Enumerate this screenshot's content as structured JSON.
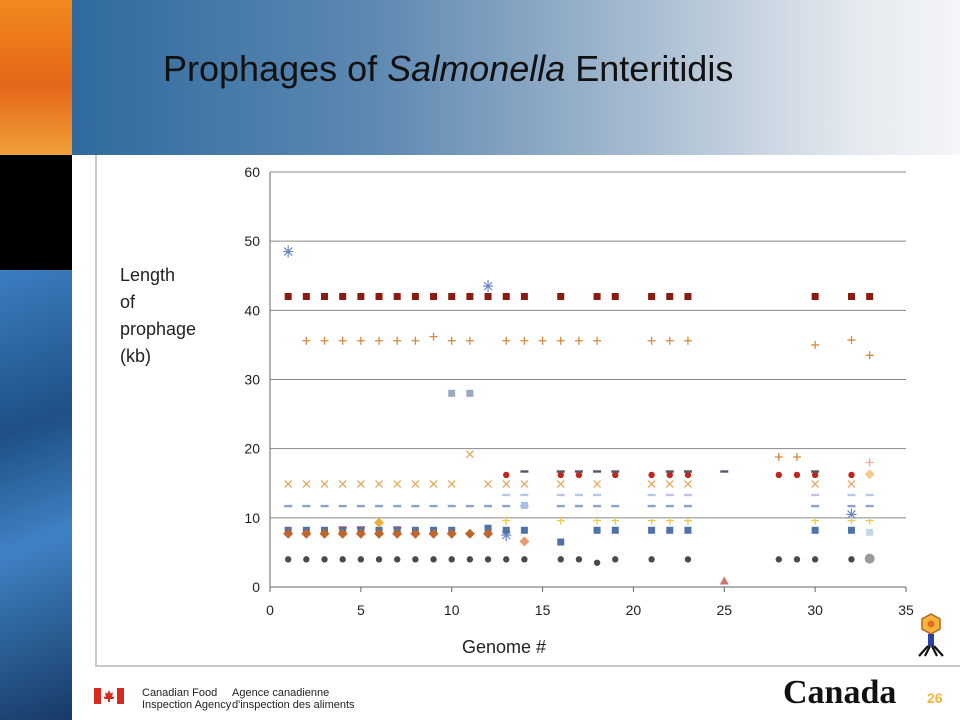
{
  "slide": {
    "title_pre": "Prophages of ",
    "title_italic": "Salmonella",
    "title_post": " Enteritidis",
    "page_number": "26"
  },
  "footer": {
    "agency_en_line1": "Canadian Food",
    "agency_en_line2": "Inspection Agency",
    "agency_fr_line1": "Agence canadienne",
    "agency_fr_line2": "d'inspection des aliments",
    "wordmark": "Canada"
  },
  "colors": {
    "canada_red": "#d52b1e",
    "page_number": "#f2b43a",
    "gridline": "#888888"
  },
  "icons": {
    "phage": "bacteriophage-icon",
    "flag": "canada-flag-icon"
  },
  "chart_data": {
    "type": "scatter",
    "title": "",
    "xlabel": "Genome #",
    "ylabel_lines": [
      "Length",
      "of",
      "prophage",
      "(kb)"
    ],
    "xlim": [
      0,
      35
    ],
    "ylim": [
      0,
      60
    ],
    "xticks": [
      0,
      5,
      10,
      15,
      20,
      25,
      30,
      35
    ],
    "yticks": [
      0,
      10,
      20,
      30,
      40,
      50,
      60
    ],
    "grid": "horizontal",
    "legend": "none",
    "series": [
      {
        "marker": "square",
        "color": "#8b1a10",
        "x": [
          1,
          2,
          3,
          4,
          5,
          6,
          7,
          8,
          9,
          10,
          11,
          12,
          13,
          14,
          16,
          18,
          19,
          21,
          22,
          23,
          30,
          32,
          33
        ],
        "y": [
          42,
          42,
          42,
          42,
          42,
          42,
          42,
          42,
          42,
          42,
          42,
          42,
          42,
          42,
          42,
          42,
          42,
          42,
          42,
          42,
          42,
          42,
          42
        ]
      },
      {
        "marker": "plus",
        "color": "#d68a3c",
        "x": [
          2,
          3,
          4,
          5,
          6,
          7,
          8,
          9,
          10,
          11,
          13,
          14,
          15,
          16,
          17,
          18,
          21,
          22,
          23,
          28,
          29,
          30,
          32,
          33
        ],
        "y": [
          35.6,
          35.6,
          35.6,
          35.6,
          35.6,
          35.6,
          35.6,
          36.2,
          35.6,
          35.6,
          35.6,
          35.6,
          35.6,
          35.6,
          35.6,
          35.6,
          35.6,
          35.6,
          35.6,
          18.8,
          18.8,
          35.0,
          35.7,
          33.5
        ]
      },
      {
        "marker": "star",
        "color": "#6a86c4",
        "x": [
          1,
          12,
          13,
          32
        ],
        "y": [
          48.5,
          43.5,
          7.5,
          10.5
        ]
      },
      {
        "marker": "square",
        "color": "#9aa9bf",
        "x": [
          10,
          11
        ],
        "y": [
          28,
          28
        ]
      },
      {
        "marker": "cross",
        "color": "#e2a85a",
        "x": [
          1,
          2,
          3,
          4,
          5,
          6,
          7,
          8,
          9,
          10,
          11,
          12,
          13,
          14,
          16,
          18,
          21,
          22,
          23,
          30,
          32
        ],
        "y": [
          14.9,
          14.9,
          14.9,
          14.9,
          14.9,
          14.9,
          14.9,
          14.9,
          14.9,
          14.9,
          19.2,
          14.9,
          14.9,
          14.9,
          14.9,
          14.9,
          14.9,
          14.9,
          14.9,
          14.9,
          14.9
        ]
      },
      {
        "marker": "circle",
        "color": "#c0271c",
        "x": [
          13,
          16,
          17,
          19,
          21,
          22,
          23,
          28,
          29,
          30,
          32
        ],
        "y": [
          16.2,
          16.2,
          16.2,
          16.2,
          16.2,
          16.2,
          16.2,
          16.2,
          16.2,
          16.2,
          16.2
        ]
      },
      {
        "marker": "dash",
        "color": "#4c5a6e",
        "x": [
          14,
          16,
          17,
          18,
          19,
          22,
          23,
          25,
          30
        ],
        "y": [
          16.7,
          16.7,
          16.7,
          16.7,
          16.7,
          16.7,
          16.7,
          16.7,
          16.7
        ]
      },
      {
        "marker": "dash",
        "color": "#8aa2cc",
        "x": [
          1,
          2,
          3,
          4,
          5,
          6,
          7,
          8,
          9,
          10,
          11,
          12,
          13,
          14,
          16,
          17,
          18,
          19,
          21,
          22,
          23,
          30,
          32,
          33
        ],
        "y": [
          11.7,
          11.7,
          11.7,
          11.7,
          11.7,
          11.7,
          11.7,
          11.7,
          11.7,
          11.7,
          11.7,
          11.7,
          11.7,
          11.7,
          11.7,
          11.7,
          11.7,
          11.7,
          11.7,
          11.7,
          11.7,
          11.7,
          11.7,
          11.7
        ]
      },
      {
        "marker": "dash",
        "color": "#b7c6e4",
        "x": [
          13,
          14,
          16,
          17,
          18,
          21,
          22,
          23,
          30,
          32,
          33
        ],
        "y": [
          13.3,
          13.3,
          13.3,
          13.3,
          13.3,
          13.3,
          13.3,
          13.3,
          13.3,
          13.3,
          13.3
        ]
      },
      {
        "marker": "square",
        "color": "#a7bfe3",
        "x": [
          14
        ],
        "y": [
          11.8
        ]
      },
      {
        "marker": "plus",
        "color": "#f0c94a",
        "x": [
          13,
          16,
          18,
          19,
          21,
          22,
          23,
          30,
          32,
          33
        ],
        "y": [
          9.6,
          9.6,
          9.6,
          9.6,
          9.6,
          9.6,
          9.6,
          9.6,
          9.6,
          9.6
        ]
      },
      {
        "marker": "dash",
        "color": "#c83a2a",
        "x": [
          4,
          5,
          7
        ],
        "y": [
          8.6,
          8.6,
          8.6
        ]
      },
      {
        "marker": "square",
        "color": "#4f73a8",
        "x": [
          1,
          2,
          3,
          4,
          5,
          6,
          7,
          8,
          9,
          10,
          12,
          13,
          14,
          16,
          18,
          19,
          21,
          22,
          23,
          30,
          32
        ],
        "y": [
          8.2,
          8.2,
          8.2,
          8.2,
          8.2,
          8.2,
          8.2,
          8.2,
          8.2,
          8.2,
          8.5,
          8.2,
          8.2,
          6.5,
          8.2,
          8.2,
          8.2,
          8.2,
          8.2,
          8.2,
          8.2
        ]
      },
      {
        "marker": "diamond",
        "color": "#c0662a",
        "x": [
          1,
          2,
          3,
          4,
          5,
          6,
          7,
          8,
          9,
          10,
          11,
          12
        ],
        "y": [
          7.7,
          7.7,
          7.7,
          7.7,
          7.7,
          7.7,
          7.7,
          7.7,
          7.7,
          7.7,
          7.7,
          7.7
        ]
      },
      {
        "marker": "diamond",
        "color": "#e89a72",
        "x": [
          14
        ],
        "y": [
          6.6
        ]
      },
      {
        "marker": "diamond",
        "color": "#e8b23c",
        "x": [
          6
        ],
        "y": [
          9.3
        ]
      },
      {
        "marker": "square",
        "color": "#c7d4ea",
        "x": [
          33
        ],
        "y": [
          7.9
        ]
      },
      {
        "marker": "diamond",
        "color": "#f5c98a",
        "x": [
          33
        ],
        "y": [
          16.3
        ]
      },
      {
        "marker": "plus",
        "color": "#f0a898",
        "x": [
          33
        ],
        "y": [
          18.0
        ]
      },
      {
        "marker": "circle",
        "color": "#4a4a4a",
        "x": [
          1,
          2,
          3,
          4,
          5,
          6,
          7,
          8,
          9,
          10,
          11,
          12,
          13,
          14,
          16,
          17,
          18,
          19,
          21,
          23,
          28,
          29,
          30,
          32
        ],
        "y": [
          4,
          4,
          4,
          4,
          4,
          4,
          4,
          4,
          4,
          4,
          4,
          4,
          4,
          4,
          4,
          4,
          3.5,
          4,
          4,
          4,
          4,
          4,
          4,
          4
        ]
      },
      {
        "marker": "circle-large",
        "color": "#9a9a9a",
        "x": [
          33
        ],
        "y": [
          4.1
        ]
      },
      {
        "marker": "triangle",
        "color": "#c8786a",
        "x": [
          25
        ],
        "y": [
          0.8
        ]
      }
    ]
  }
}
